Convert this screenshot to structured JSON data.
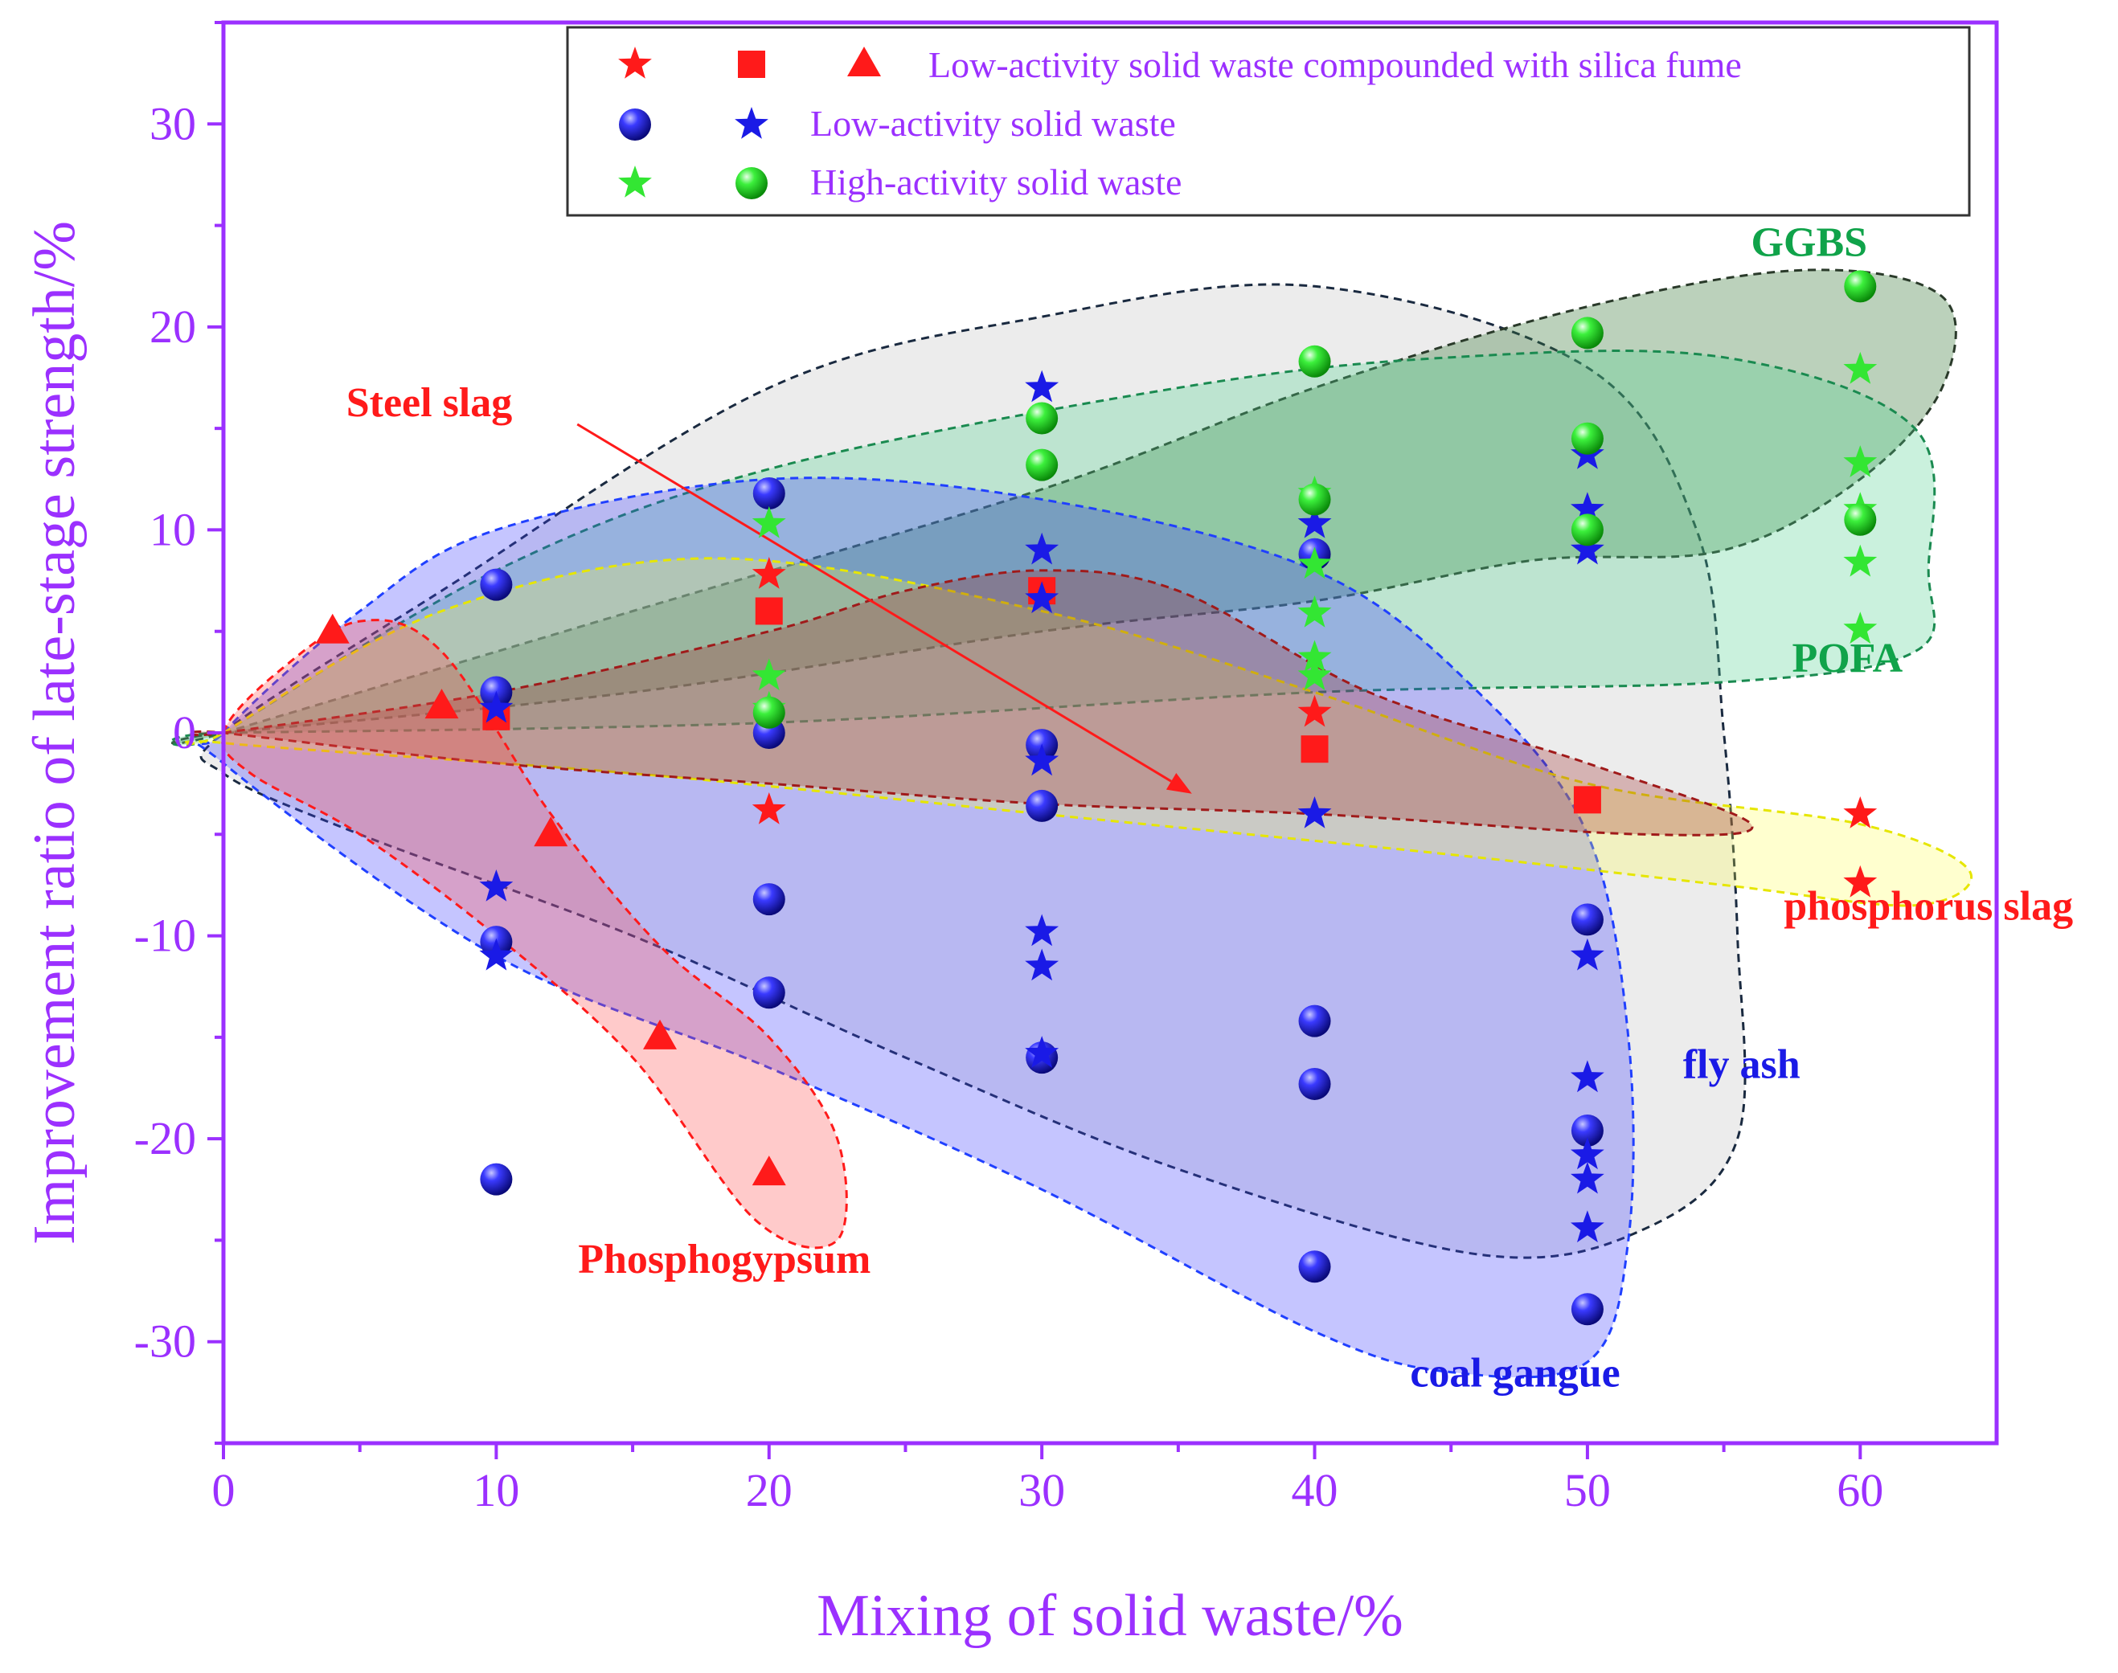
{
  "chart_data": {
    "type": "scatter",
    "xlabel": "Mixing of solid waste/%",
    "ylabel": "Improvement ratio of late-stage strength/%",
    "xlim": [
      0,
      65
    ],
    "ylim": [
      -35,
      35
    ],
    "xticks": [
      0,
      10,
      20,
      30,
      40,
      50,
      60
    ],
    "yticks": [
      -30,
      -20,
      -10,
      0,
      10,
      20,
      30
    ],
    "xtick_labels": [
      "0",
      "10",
      "20",
      "30",
      "40",
      "50",
      "60"
    ],
    "ytick_labels": [
      "-30",
      "-20",
      "-10",
      "0",
      "10",
      "20",
      "30"
    ],
    "colors": {
      "axis": "#9b30ff",
      "red": "#ff1a1a",
      "blue": "#1a1ae6",
      "green": "#33e633",
      "annotation_green": "#10a34a",
      "annotation_blue": "#1a1ae6",
      "annotation_red": "#ff1a1a"
    },
    "legend": [
      {
        "markers": [
          "star-red",
          "square-red",
          "triangle-red"
        ],
        "label": "Low-activity solid waste compounded with silica fume"
      },
      {
        "markers": [
          "sphere-blue",
          "star-blue"
        ],
        "label": "Low-activity solid waste"
      },
      {
        "markers": [
          "star-green",
          "sphere-green"
        ],
        "label": "High-activity solid waste"
      }
    ],
    "annotations": [
      {
        "id": "ggbs",
        "text": "GGBS",
        "x": 56,
        "y": 23.5,
        "color": "annotation_green"
      },
      {
        "id": "pofa",
        "text": "POFA",
        "x": 57.5,
        "y": 3,
        "color": "annotation_green"
      },
      {
        "id": "steel-slag",
        "text": "Steel slag",
        "x": 4.5,
        "y": 15.6,
        "color": "annotation_red"
      },
      {
        "id": "phosphorus-slag",
        "text": "phosphorus slag",
        "x": 57.2,
        "y": -9.2,
        "color": "annotation_red"
      },
      {
        "id": "fly-ash",
        "text": "fly ash",
        "x": 53.5,
        "y": -17,
        "color": "annotation_blue"
      },
      {
        "id": "phosphogypsum",
        "text": "Phosphogypsum",
        "x": 13,
        "y": -26.6,
        "color": "annotation_red"
      },
      {
        "id": "coal-gangue",
        "text": "coal gangue",
        "x": 43.5,
        "y": -32.2,
        "color": "annotation_blue"
      }
    ],
    "arrow": {
      "from": [
        12.5,
        15.6
      ],
      "to": [
        35.5,
        -3
      ]
    },
    "regions": [
      {
        "name": "fly-ash-region",
        "fill": "#c0c0c0",
        "stroke": "#1a2a40",
        "opacity": 0.3,
        "points": [
          [
            0,
            0
          ],
          [
            8,
            7
          ],
          [
            20,
            17
          ],
          [
            30,
            20.5
          ],
          [
            40,
            22
          ],
          [
            50,
            18
          ],
          [
            54,
            10
          ],
          [
            55,
            0
          ],
          [
            55.5,
            -10
          ],
          [
            55.5,
            -20
          ],
          [
            52,
            -24.5
          ],
          [
            46,
            -25.7
          ],
          [
            35,
            -21.5
          ],
          [
            25,
            -16
          ],
          [
            15,
            -10
          ],
          [
            5,
            -5
          ],
          [
            0,
            -2
          ]
        ]
      },
      {
        "name": "ggbs-region",
        "fill": "#3c7a3c",
        "stroke": "#2a3a2a",
        "opacity": 0.35,
        "points": [
          [
            0,
            0
          ],
          [
            15,
            6
          ],
          [
            30,
            12
          ],
          [
            40,
            17
          ],
          [
            50,
            21
          ],
          [
            58,
            22.8
          ],
          [
            63,
            21.5
          ],
          [
            63,
            17
          ],
          [
            60,
            12.5
          ],
          [
            55,
            9
          ],
          [
            48,
            8.5
          ],
          [
            40,
            6.5
          ],
          [
            30,
            5
          ],
          [
            15,
            2
          ],
          [
            0,
            0
          ]
        ]
      },
      {
        "name": "pofa-region",
        "fill": "#50d090",
        "stroke": "#1a8a50",
        "opacity": 0.3,
        "points": [
          [
            0,
            0
          ],
          [
            10,
            8
          ],
          [
            20,
            13
          ],
          [
            35,
            17
          ],
          [
            45,
            18.5
          ],
          [
            55,
            18.5
          ],
          [
            62,
            15
          ],
          [
            62.5,
            8
          ],
          [
            62,
            4
          ],
          [
            55,
            2.5
          ],
          [
            40,
            2
          ],
          [
            20,
            0.5
          ],
          [
            0,
            0
          ]
        ]
      },
      {
        "name": "coal-gangue-region",
        "fill": "#4040ff",
        "stroke": "#2040ff",
        "opacity": 0.3,
        "points": [
          [
            0,
            0
          ],
          [
            5,
            6
          ],
          [
            10,
            10
          ],
          [
            20,
            12.5
          ],
          [
            30,
            11.5
          ],
          [
            40,
            8
          ],
          [
            46,
            2
          ],
          [
            50,
            -5
          ],
          [
            51.5,
            -15
          ],
          [
            51.5,
            -25
          ],
          [
            50,
            -31
          ],
          [
            45,
            -31.5
          ],
          [
            40,
            -29.5
          ],
          [
            30,
            -22.5
          ],
          [
            20,
            -16.5
          ],
          [
            10,
            -11
          ],
          [
            0,
            -1.5
          ]
        ]
      },
      {
        "name": "phosphorus-slag-region",
        "fill": "#ffff40",
        "stroke": "#e6e600",
        "opacity": 0.25,
        "points": [
          [
            0,
            0
          ],
          [
            8,
            6
          ],
          [
            18,
            8.6
          ],
          [
            30,
            6
          ],
          [
            40,
            2
          ],
          [
            50,
            -2.5
          ],
          [
            60,
            -4.5
          ],
          [
            64,
            -6.8
          ],
          [
            62,
            -8.5
          ],
          [
            55,
            -7.5
          ],
          [
            45,
            -6
          ],
          [
            30,
            -4
          ],
          [
            15,
            -2
          ],
          [
            0,
            -0.5
          ]
        ]
      },
      {
        "name": "steel-slag-region",
        "fill": "#a03030",
        "stroke": "#a01a1a",
        "opacity": 0.3,
        "points": [
          [
            0,
            0
          ],
          [
            10,
            2
          ],
          [
            20,
            5
          ],
          [
            25,
            7
          ],
          [
            30,
            8
          ],
          [
            35,
            7
          ],
          [
            42,
            2
          ],
          [
            50,
            -1.5
          ],
          [
            56,
            -4.5
          ],
          [
            52,
            -5
          ],
          [
            40,
            -4
          ],
          [
            30,
            -3.5
          ],
          [
            20,
            -2.5
          ],
          [
            10,
            -1.5
          ],
          [
            0,
            0
          ]
        ]
      },
      {
        "name": "phosphogypsum-region",
        "fill": "#ff5050",
        "stroke": "#ff1a1a",
        "opacity": 0.3,
        "points": [
          [
            0,
            0
          ],
          [
            2,
            3
          ],
          [
            5,
            5.5
          ],
          [
            8,
            4
          ],
          [
            12,
            -4
          ],
          [
            16,
            -10.5
          ],
          [
            20,
            -15
          ],
          [
            22.5,
            -20
          ],
          [
            22.5,
            -25
          ],
          [
            19.5,
            -24
          ],
          [
            15,
            -16
          ],
          [
            10,
            -10
          ],
          [
            5,
            -5
          ],
          [
            1,
            -2
          ]
        ]
      }
    ],
    "series": [
      {
        "name": "red-star",
        "marker": "star",
        "color": "red",
        "points": [
          [
            20,
            7.8
          ],
          [
            20,
            -3.8
          ],
          [
            40,
            1
          ],
          [
            60,
            -4
          ],
          [
            60,
            -7.4
          ]
        ]
      },
      {
        "name": "red-square",
        "marker": "square",
        "color": "red",
        "points": [
          [
            10,
            0.8
          ],
          [
            20,
            6
          ],
          [
            30,
            7
          ],
          [
            40,
            -0.8
          ],
          [
            50,
            -3.3
          ]
        ]
      },
      {
        "name": "red-triangle",
        "marker": "triangle",
        "color": "red",
        "points": [
          [
            4,
            5
          ],
          [
            8,
            1.3
          ],
          [
            12,
            -5
          ],
          [
            16,
            -15
          ],
          [
            20,
            -21.7
          ]
        ]
      },
      {
        "name": "blue-sphere",
        "marker": "sphere",
        "color": "blue",
        "points": [
          [
            10,
            7.3
          ],
          [
            10,
            2
          ],
          [
            10,
            -10.3
          ],
          [
            10,
            -22
          ],
          [
            20,
            11.8
          ],
          [
            20,
            0
          ],
          [
            20,
            -8.2
          ],
          [
            20,
            -12.8
          ],
          [
            30,
            -0.6
          ],
          [
            30,
            -3.6
          ],
          [
            30,
            -16
          ],
          [
            40,
            8.8
          ],
          [
            40,
            -14.2
          ],
          [
            40,
            -17.3
          ],
          [
            40,
            -26.3
          ],
          [
            50,
            -9.2
          ],
          [
            50,
            -19.6
          ],
          [
            50,
            -28.4
          ]
        ]
      },
      {
        "name": "blue-star",
        "marker": "star",
        "color": "blue",
        "points": [
          [
            10,
            1.2
          ],
          [
            10,
            -7.6
          ],
          [
            10,
            -11
          ],
          [
            30,
            17
          ],
          [
            30,
            9
          ],
          [
            30,
            6.6
          ],
          [
            30,
            -1.4
          ],
          [
            30,
            -9.8
          ],
          [
            30,
            -11.5
          ],
          [
            30,
            -15.8
          ],
          [
            40,
            10.3
          ],
          [
            40,
            -4
          ],
          [
            50,
            13.7
          ],
          [
            50,
            11
          ],
          [
            50,
            9
          ],
          [
            50,
            -11
          ],
          [
            50,
            -17
          ],
          [
            50,
            -20.8
          ],
          [
            50,
            -22
          ],
          [
            50,
            -24.4
          ]
        ]
      },
      {
        "name": "green-star",
        "marker": "star",
        "color": "green",
        "points": [
          [
            20,
            10.3
          ],
          [
            20,
            2.8
          ],
          [
            20,
            1.2
          ],
          [
            40,
            11.8
          ],
          [
            40,
            8.3
          ],
          [
            40,
            5.9
          ],
          [
            40,
            3.7
          ],
          [
            40,
            2.8
          ],
          [
            60,
            17.9
          ],
          [
            60,
            13.3
          ],
          [
            60,
            11
          ],
          [
            60,
            8.4
          ],
          [
            60,
            5.1
          ]
        ]
      },
      {
        "name": "green-sphere",
        "marker": "sphere",
        "color": "green",
        "points": [
          [
            20,
            1
          ],
          [
            30,
            15.5
          ],
          [
            30,
            13.2
          ],
          [
            40,
            18.3
          ],
          [
            40,
            11.5
          ],
          [
            50,
            19.7
          ],
          [
            50,
            14.5
          ],
          [
            50,
            10
          ],
          [
            60,
            22
          ],
          [
            60,
            10.5
          ]
        ]
      }
    ]
  }
}
